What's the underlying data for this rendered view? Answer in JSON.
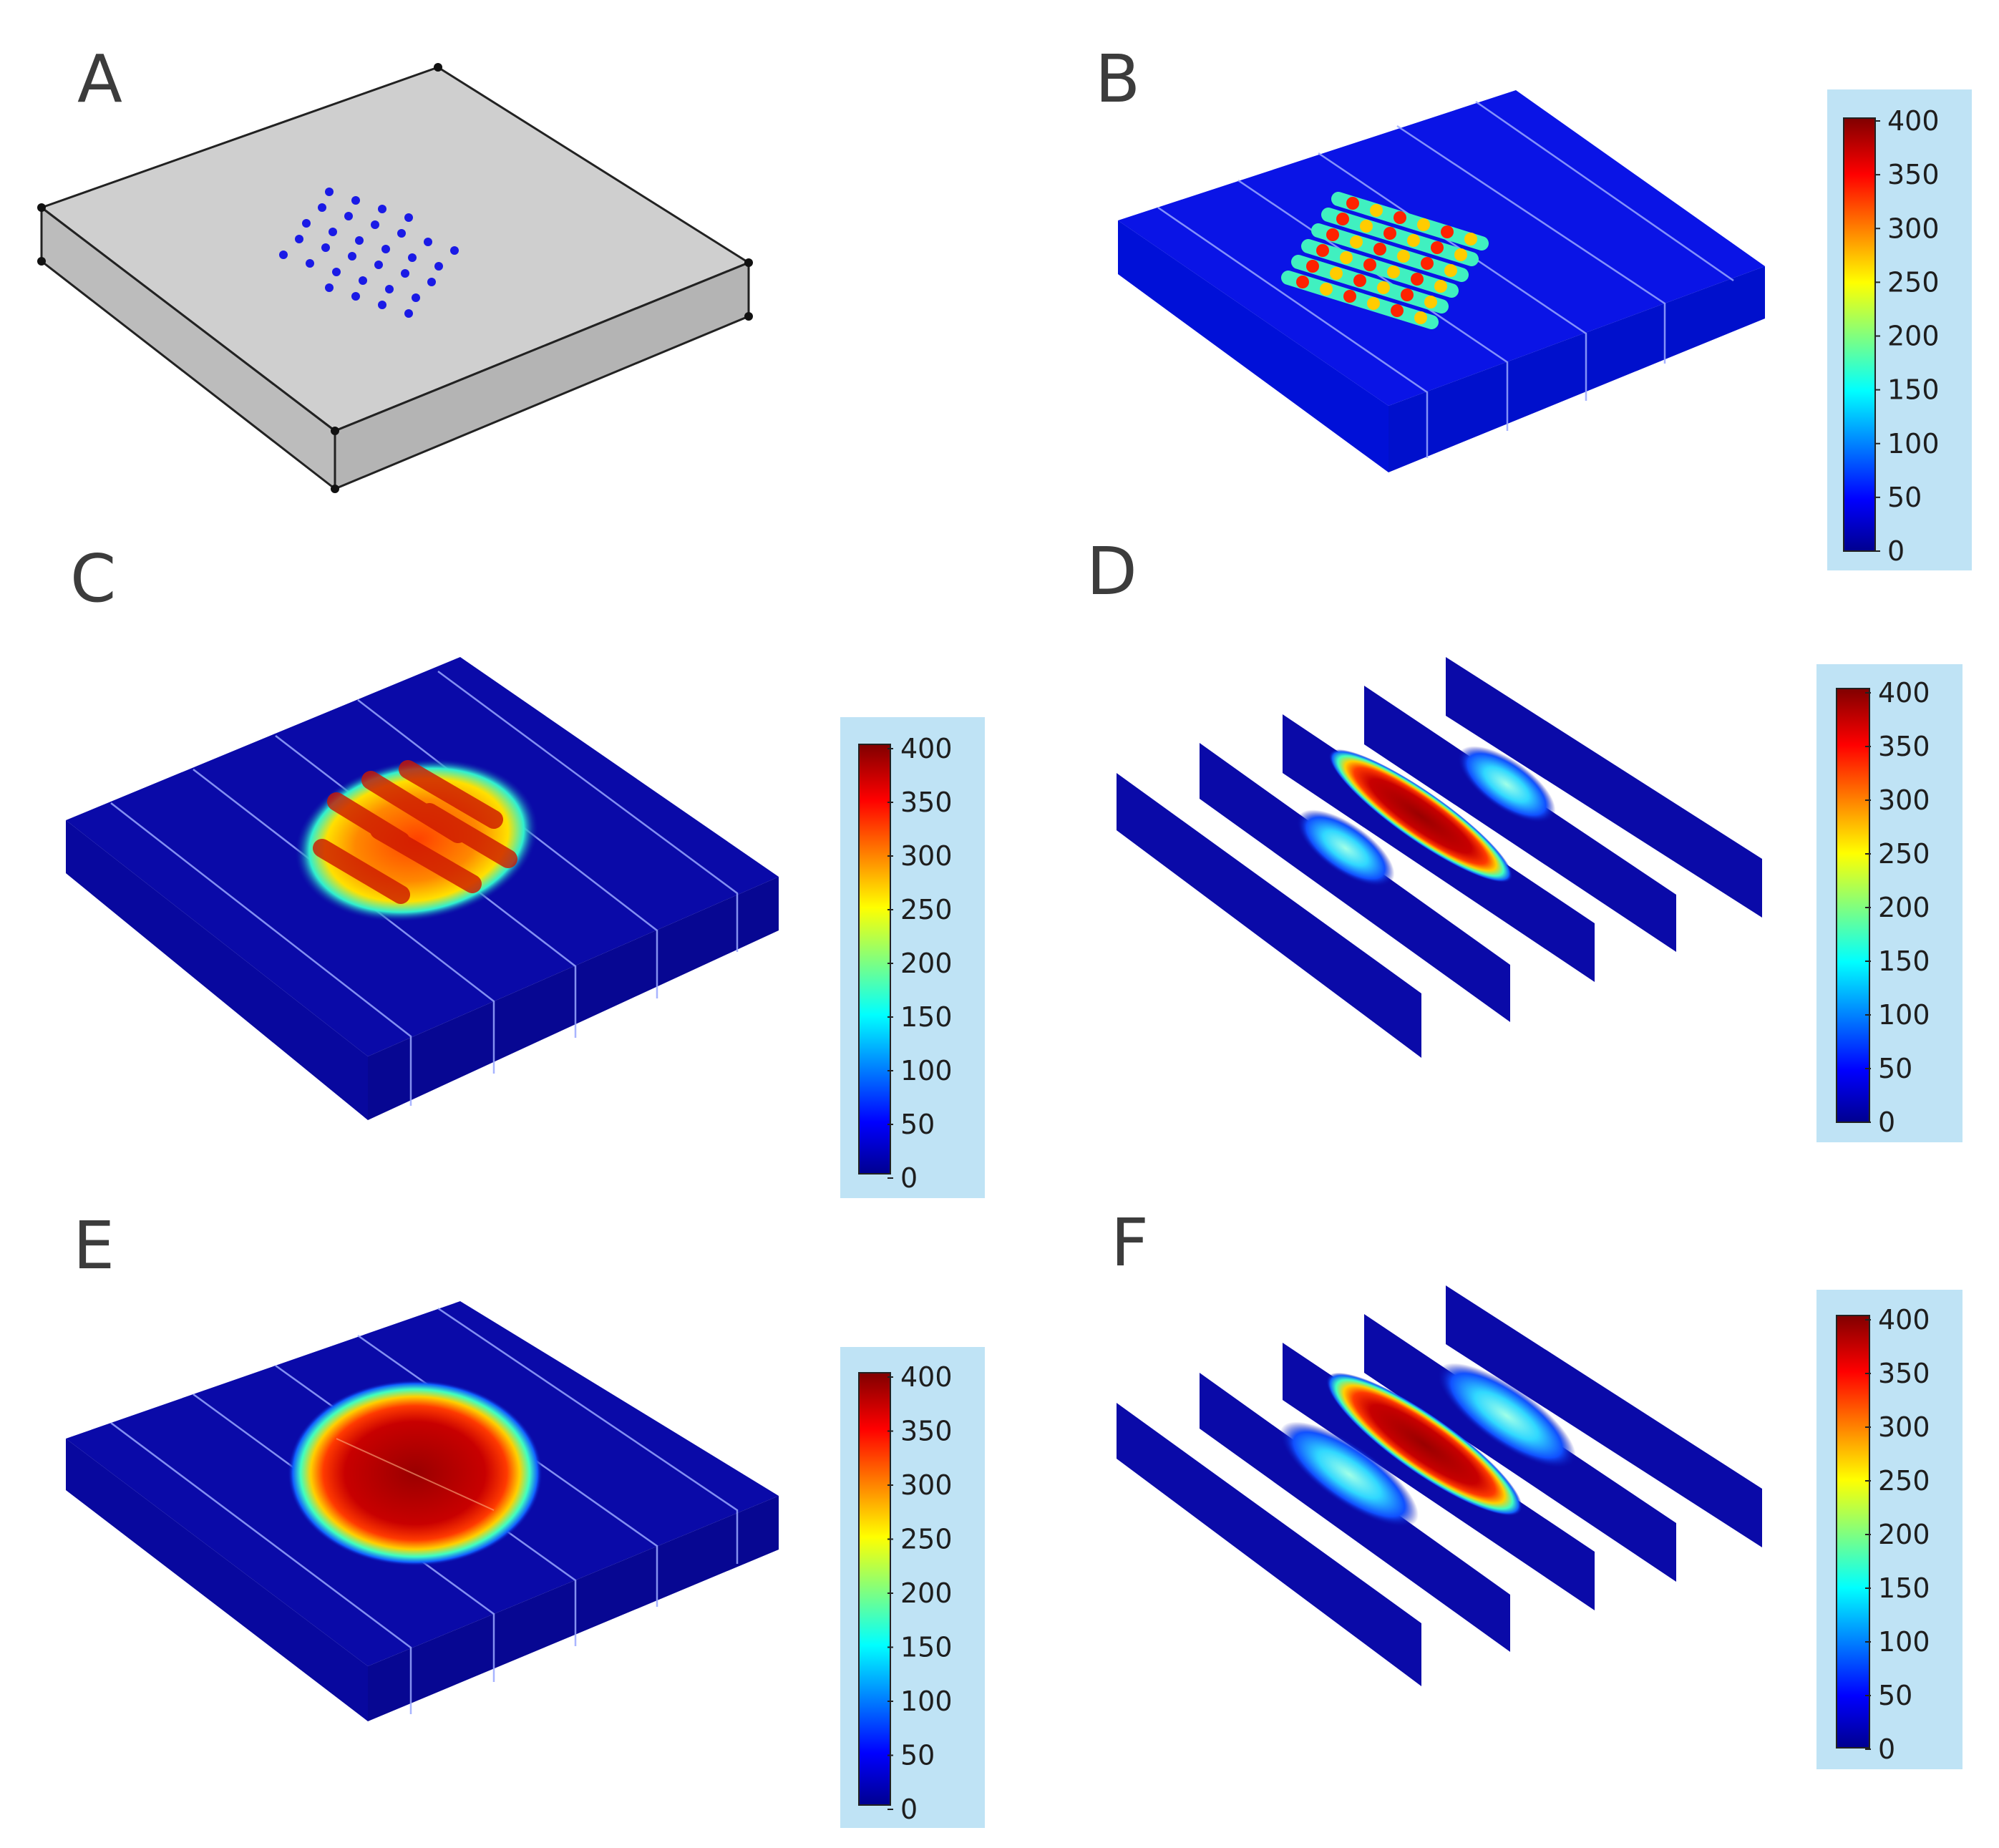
{
  "figure": {
    "panels": [
      {
        "label": "A",
        "kind": "geometry",
        "has_colorbar": false
      },
      {
        "label": "B",
        "kind": "slab",
        "has_colorbar": true,
        "stage": "early"
      },
      {
        "label": "C",
        "kind": "slab",
        "has_colorbar": true,
        "stage": "mid"
      },
      {
        "label": "D",
        "kind": "slices",
        "has_colorbar": true,
        "stage": "mid"
      },
      {
        "label": "E",
        "kind": "slab",
        "has_colorbar": true,
        "stage": "late"
      },
      {
        "label": "F",
        "kind": "slices",
        "has_colorbar": true,
        "stage": "late"
      }
    ],
    "colorbar": {
      "ticks": [
        "400",
        "350",
        "300",
        "250",
        "200",
        "150",
        "100",
        "50",
        "0"
      ],
      "min": 0,
      "max": 400,
      "colormap": "jet",
      "background": "#bfe3f5"
    },
    "colors": {
      "geometry_face": "#c8c8c8",
      "geometry_edge": "#222222",
      "needle_point": "#1a1ae6",
      "field_base": "#0a0aa8"
    }
  }
}
